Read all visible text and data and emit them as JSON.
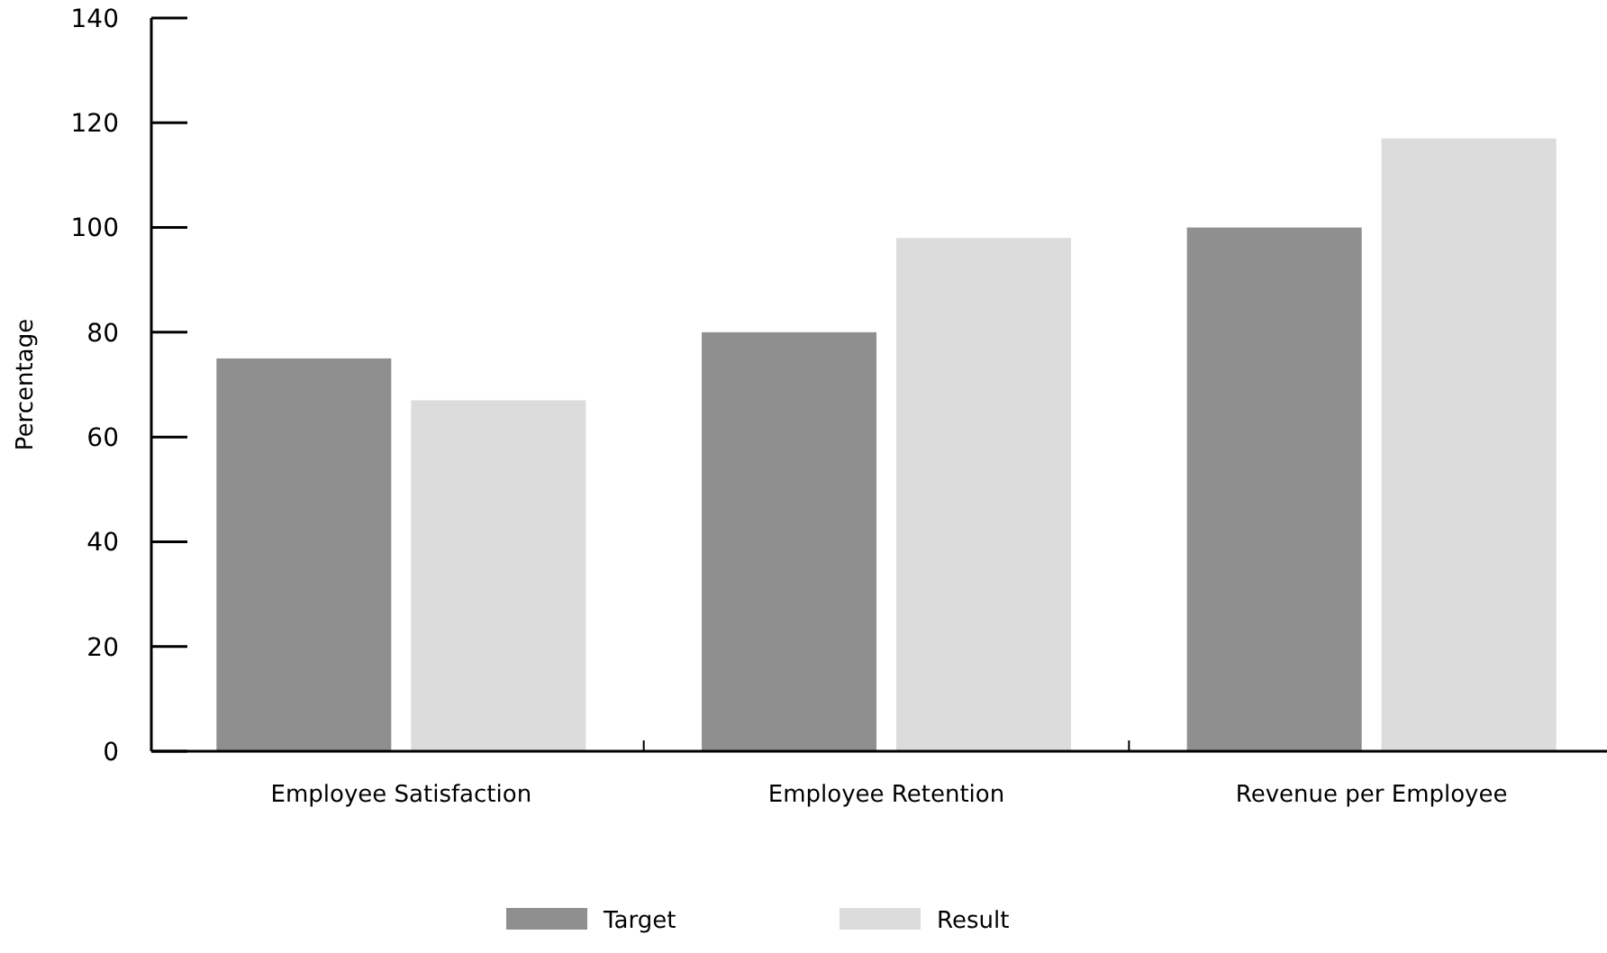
{
  "chart_data": {
    "type": "bar",
    "ylabel": "Percentage",
    "categories": [
      "Employee Satisfaction",
      "Employee Retention",
      "Revenue per Employee"
    ],
    "series": [
      {
        "name": "Target",
        "color": "#8f8f8f",
        "values": [
          75,
          80,
          100
        ]
      },
      {
        "name": "Result",
        "color": "#dcdcdc",
        "values": [
          67,
          98,
          117
        ]
      }
    ],
    "ylim": [
      0,
      140
    ],
    "yticks": [
      0,
      20,
      40,
      60,
      80,
      100,
      120,
      140
    ],
    "legend": "bottom",
    "grid": false
  }
}
